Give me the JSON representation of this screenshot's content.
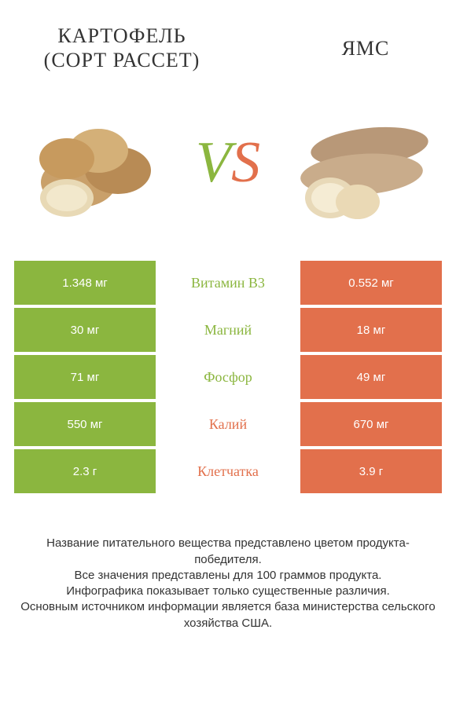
{
  "colors": {
    "green": "#8bb63f",
    "orange": "#e2704c",
    "white": "#ffffff",
    "text": "#333333"
  },
  "products": {
    "left": {
      "title": "КАРТОФЕЛЬ (СОРТ РАССЕТ)"
    },
    "right": {
      "title": "ЯМС"
    }
  },
  "vs": {
    "v": "V",
    "s": "S"
  },
  "rows": [
    {
      "left": "1.348 мг",
      "nutrient": "Витамин B3",
      "right": "0.552 мг",
      "winner": "left"
    },
    {
      "left": "30 мг",
      "nutrient": "Магний",
      "right": "18 мг",
      "winner": "left"
    },
    {
      "left": "71 мг",
      "nutrient": "Фосфор",
      "right": "49 мг",
      "winner": "left"
    },
    {
      "left": "550 мг",
      "nutrient": "Калий",
      "right": "670 мг",
      "winner": "right"
    },
    {
      "left": "2.3 г",
      "nutrient": "Клетчатка",
      "right": "3.9 г",
      "winner": "right"
    }
  ],
  "footer": {
    "l1": "Название питательного вещества представлено цветом продукта-победителя.",
    "l2": "Все значения представлены для 100 граммов продукта.",
    "l3": "Инфографика показывает только существенные различия.",
    "l4": "Основным источником информации является база министерства сельского хозяйства США."
  }
}
